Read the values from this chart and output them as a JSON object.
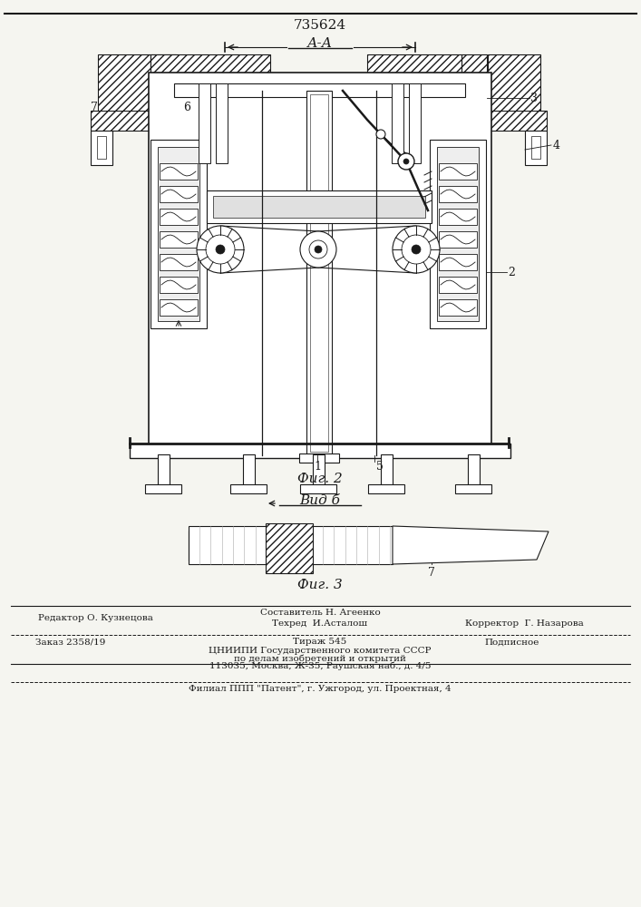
{
  "patent_number": "735624",
  "fig2_label": "Фиг. 2",
  "fig3_label": "Фиг. 3",
  "section_label": "А-А",
  "view_label": "Вид б",
  "footer_line1_left": "Редактор О. Кузнецова",
  "footer_line1_center_top": "Составитель Н. Агеенко",
  "footer_line1_center": "Техред  И.Асталош",
  "footer_line1_right": "Корректор  Г. Назарова",
  "footer_line2_left": "Заказ 2358/19",
  "footer_line2_center": "Тираж 545",
  "footer_line2_right": "Подписное",
  "footer_line3": "ЦНИИПИ Государственного комитета СССР",
  "footer_line4": "по делам изобретений и открытий",
  "footer_line5": "113035, Москва, Ж-35, Раушская наб., д. 4/5",
  "footer_line6": "Филиал ППП \"Патент\", г. Ужгород, ул. Проектная, 4",
  "bg_color": "#f5f5f0",
  "line_color": "#1a1a1a"
}
